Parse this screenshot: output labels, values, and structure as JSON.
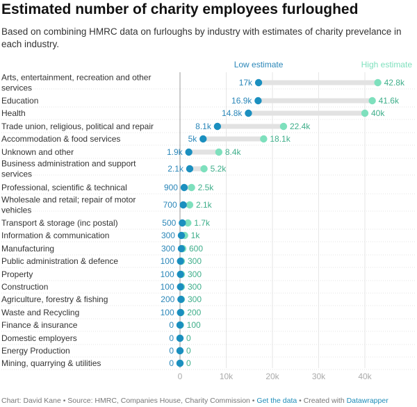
{
  "title": "Estimated number of charity employees furloughed",
  "subtitle": "Based on combining HMRC data on furloughs by industry with estimates of charity prevelance in each industry.",
  "footer": {
    "source": "Chart: David Kane • Source: HMRC, Companies House, Charity Commission • ",
    "get_data": "Get the data",
    "created_sep": " • Created with ",
    "datawrapper": "Datawrapper"
  },
  "colors": {
    "low": "#1b8fbf",
    "high": "#7ee0bd",
    "low_text": "#2a86b8",
    "high_text": "#3fae8a",
    "range_bar": "#e2e2e2"
  },
  "chart_data": {
    "type": "range-dot",
    "legend": {
      "low": "Low estimate",
      "high": "High estimate"
    },
    "xlim": [
      0,
      42800
    ],
    "xticks": [
      0,
      10000,
      20000,
      30000,
      40000
    ],
    "xtick_labels": [
      "0",
      "10k",
      "20k",
      "30k",
      "40k"
    ],
    "grid": true,
    "rows": [
      {
        "category": "Arts, entertainment, recreation and other services",
        "low": 17000,
        "high": 42800,
        "low_label": "17k",
        "high_label": "42.8k"
      },
      {
        "category": "Education",
        "low": 16900,
        "high": 41600,
        "low_label": "16.9k",
        "high_label": "41.6k"
      },
      {
        "category": "Health",
        "low": 14800,
        "high": 40000,
        "low_label": "14.8k",
        "high_label": "40k"
      },
      {
        "category": "Trade union, religious, political and repair",
        "low": 8100,
        "high": 22400,
        "low_label": "8.1k",
        "high_label": "22.4k"
      },
      {
        "category": "Accommodation & food services",
        "low": 5000,
        "high": 18100,
        "low_label": "5k",
        "high_label": "18.1k"
      },
      {
        "category": "Unknown and other",
        "low": 1900,
        "high": 8400,
        "low_label": "1.9k",
        "high_label": "8.4k"
      },
      {
        "category": "Business administration and support services",
        "low": 2100,
        "high": 5200,
        "low_label": "2.1k",
        "high_label": "5.2k"
      },
      {
        "category": "Professional, scientific & technical",
        "low": 900,
        "high": 2500,
        "low_label": "900",
        "high_label": "2.5k"
      },
      {
        "category": "Wholesale and retail; repair of motor vehicles",
        "low": 700,
        "high": 2100,
        "low_label": "700",
        "high_label": "2.1k"
      },
      {
        "category": "Transport & storage (inc postal)",
        "low": 500,
        "high": 1700,
        "low_label": "500",
        "high_label": "1.7k"
      },
      {
        "category": "Information & communication",
        "low": 300,
        "high": 1000,
        "low_label": "300",
        "high_label": "1k"
      },
      {
        "category": "Manufacturing",
        "low": 300,
        "high": 600,
        "low_label": "300",
        "high_label": "600"
      },
      {
        "category": "Public administration & defence",
        "low": 100,
        "high": 300,
        "low_label": "100",
        "high_label": "300"
      },
      {
        "category": "Property",
        "low": 100,
        "high": 300,
        "low_label": "100",
        "high_label": "300"
      },
      {
        "category": "Construction",
        "low": 100,
        "high": 300,
        "low_label": "100",
        "high_label": "300"
      },
      {
        "category": "Agriculture, forestry & fishing",
        "low": 200,
        "high": 300,
        "low_label": "200",
        "high_label": "300"
      },
      {
        "category": "Waste and Recycling",
        "low": 100,
        "high": 200,
        "low_label": "100",
        "high_label": "200"
      },
      {
        "category": "Finance & insurance",
        "low": 0,
        "high": 100,
        "low_label": "0",
        "high_label": "100"
      },
      {
        "category": "Domestic employers",
        "low": 0,
        "high": 0,
        "low_label": "0",
        "high_label": "0"
      },
      {
        "category": "Energy Production",
        "low": 0,
        "high": 0,
        "low_label": "0",
        "high_label": "0"
      },
      {
        "category": "Mining, quarrying & utilities",
        "low": 0,
        "high": 0,
        "low_label": "0",
        "high_label": "0"
      }
    ]
  }
}
